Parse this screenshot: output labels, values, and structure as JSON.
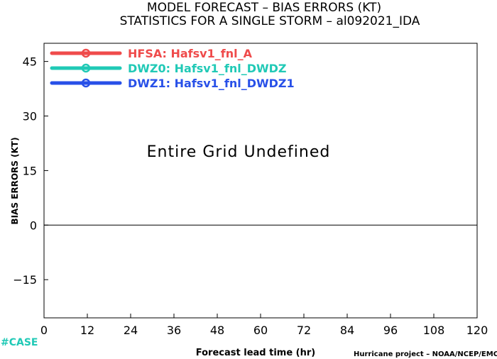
{
  "colors": {
    "hfsa": "#ef4b4b",
    "dwz0": "#20c9b6",
    "dwz1": "#2850e8",
    "case": "#20c9b6"
  },
  "chart_data": {
    "type": "line",
    "title": "MODEL FORECAST – BIAS ERRORS (KT)",
    "subtitle": "STATISTICS FOR A SINGLE STORM – al092021_IDA",
    "xlabel": "Forecast lead time (hr)",
    "ylabel": "BIAS ERRORS (KT)",
    "xlim": [
      0,
      120
    ],
    "ylim": [
      -25.5,
      50
    ],
    "x_ticks": [
      0,
      12,
      24,
      36,
      48,
      60,
      72,
      84,
      96,
      108,
      120
    ],
    "y_ticks": [
      -15,
      0,
      15,
      30,
      45
    ],
    "zero_line": 0,
    "grid": false,
    "legend_position": "top-left",
    "message": "Entire Grid Undefined",
    "series": [
      {
        "name": "HFSA: Hafsv1_fnl_A",
        "color": "#ef4b4b",
        "x": [],
        "y": []
      },
      {
        "name": "DWZ0: Hafsv1_fnl_DWDZ",
        "color": "#20c9b6",
        "x": [],
        "y": []
      },
      {
        "name": "DWZ1: Hafsv1_fnl_DWDZ1",
        "color": "#2850e8",
        "x": [],
        "y": []
      }
    ]
  },
  "footer": {
    "case_label": "#CASE",
    "credit": "Hurricane project – NOAA/NCEP/EMC"
  }
}
